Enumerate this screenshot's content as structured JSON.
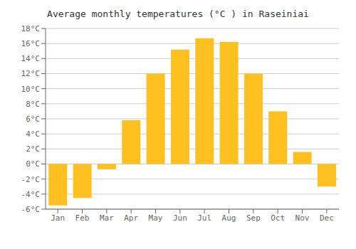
{
  "chart_data": {
    "type": "bar",
    "title": "Average monthly temperatures (°C ) in Raseiniai",
    "categories": [
      "Jan",
      "Feb",
      "Mar",
      "Apr",
      "May",
      "Jun",
      "Jul",
      "Aug",
      "Sep",
      "Oct",
      "Nov",
      "Dec"
    ],
    "values": [
      -5.5,
      -4.5,
      -0.7,
      5.8,
      12.0,
      15.2,
      16.7,
      16.2,
      12.0,
      7.0,
      1.6,
      -3.0
    ],
    "color": "#FFC020",
    "ylim": [
      -6,
      18
    ],
    "yticks": [
      {
        "value": -6,
        "label": "-6°C"
      },
      {
        "value": -4,
        "label": "-4°C"
      },
      {
        "value": -2,
        "label": "-2°C"
      },
      {
        "value": 0,
        "label": "0°C"
      },
      {
        "value": 2,
        "label": "2°C"
      },
      {
        "value": 4,
        "label": "4°C"
      },
      {
        "value": 6,
        "label": "6°C"
      },
      {
        "value": 8,
        "label": "8°C"
      },
      {
        "value": 10,
        "label": "10°C"
      },
      {
        "value": 12,
        "label": "12°C"
      },
      {
        "value": 14,
        "label": "14°C"
      },
      {
        "value": 16,
        "label": "16°C"
      },
      {
        "value": 18,
        "label": "18°C"
      }
    ],
    "grid": true
  }
}
